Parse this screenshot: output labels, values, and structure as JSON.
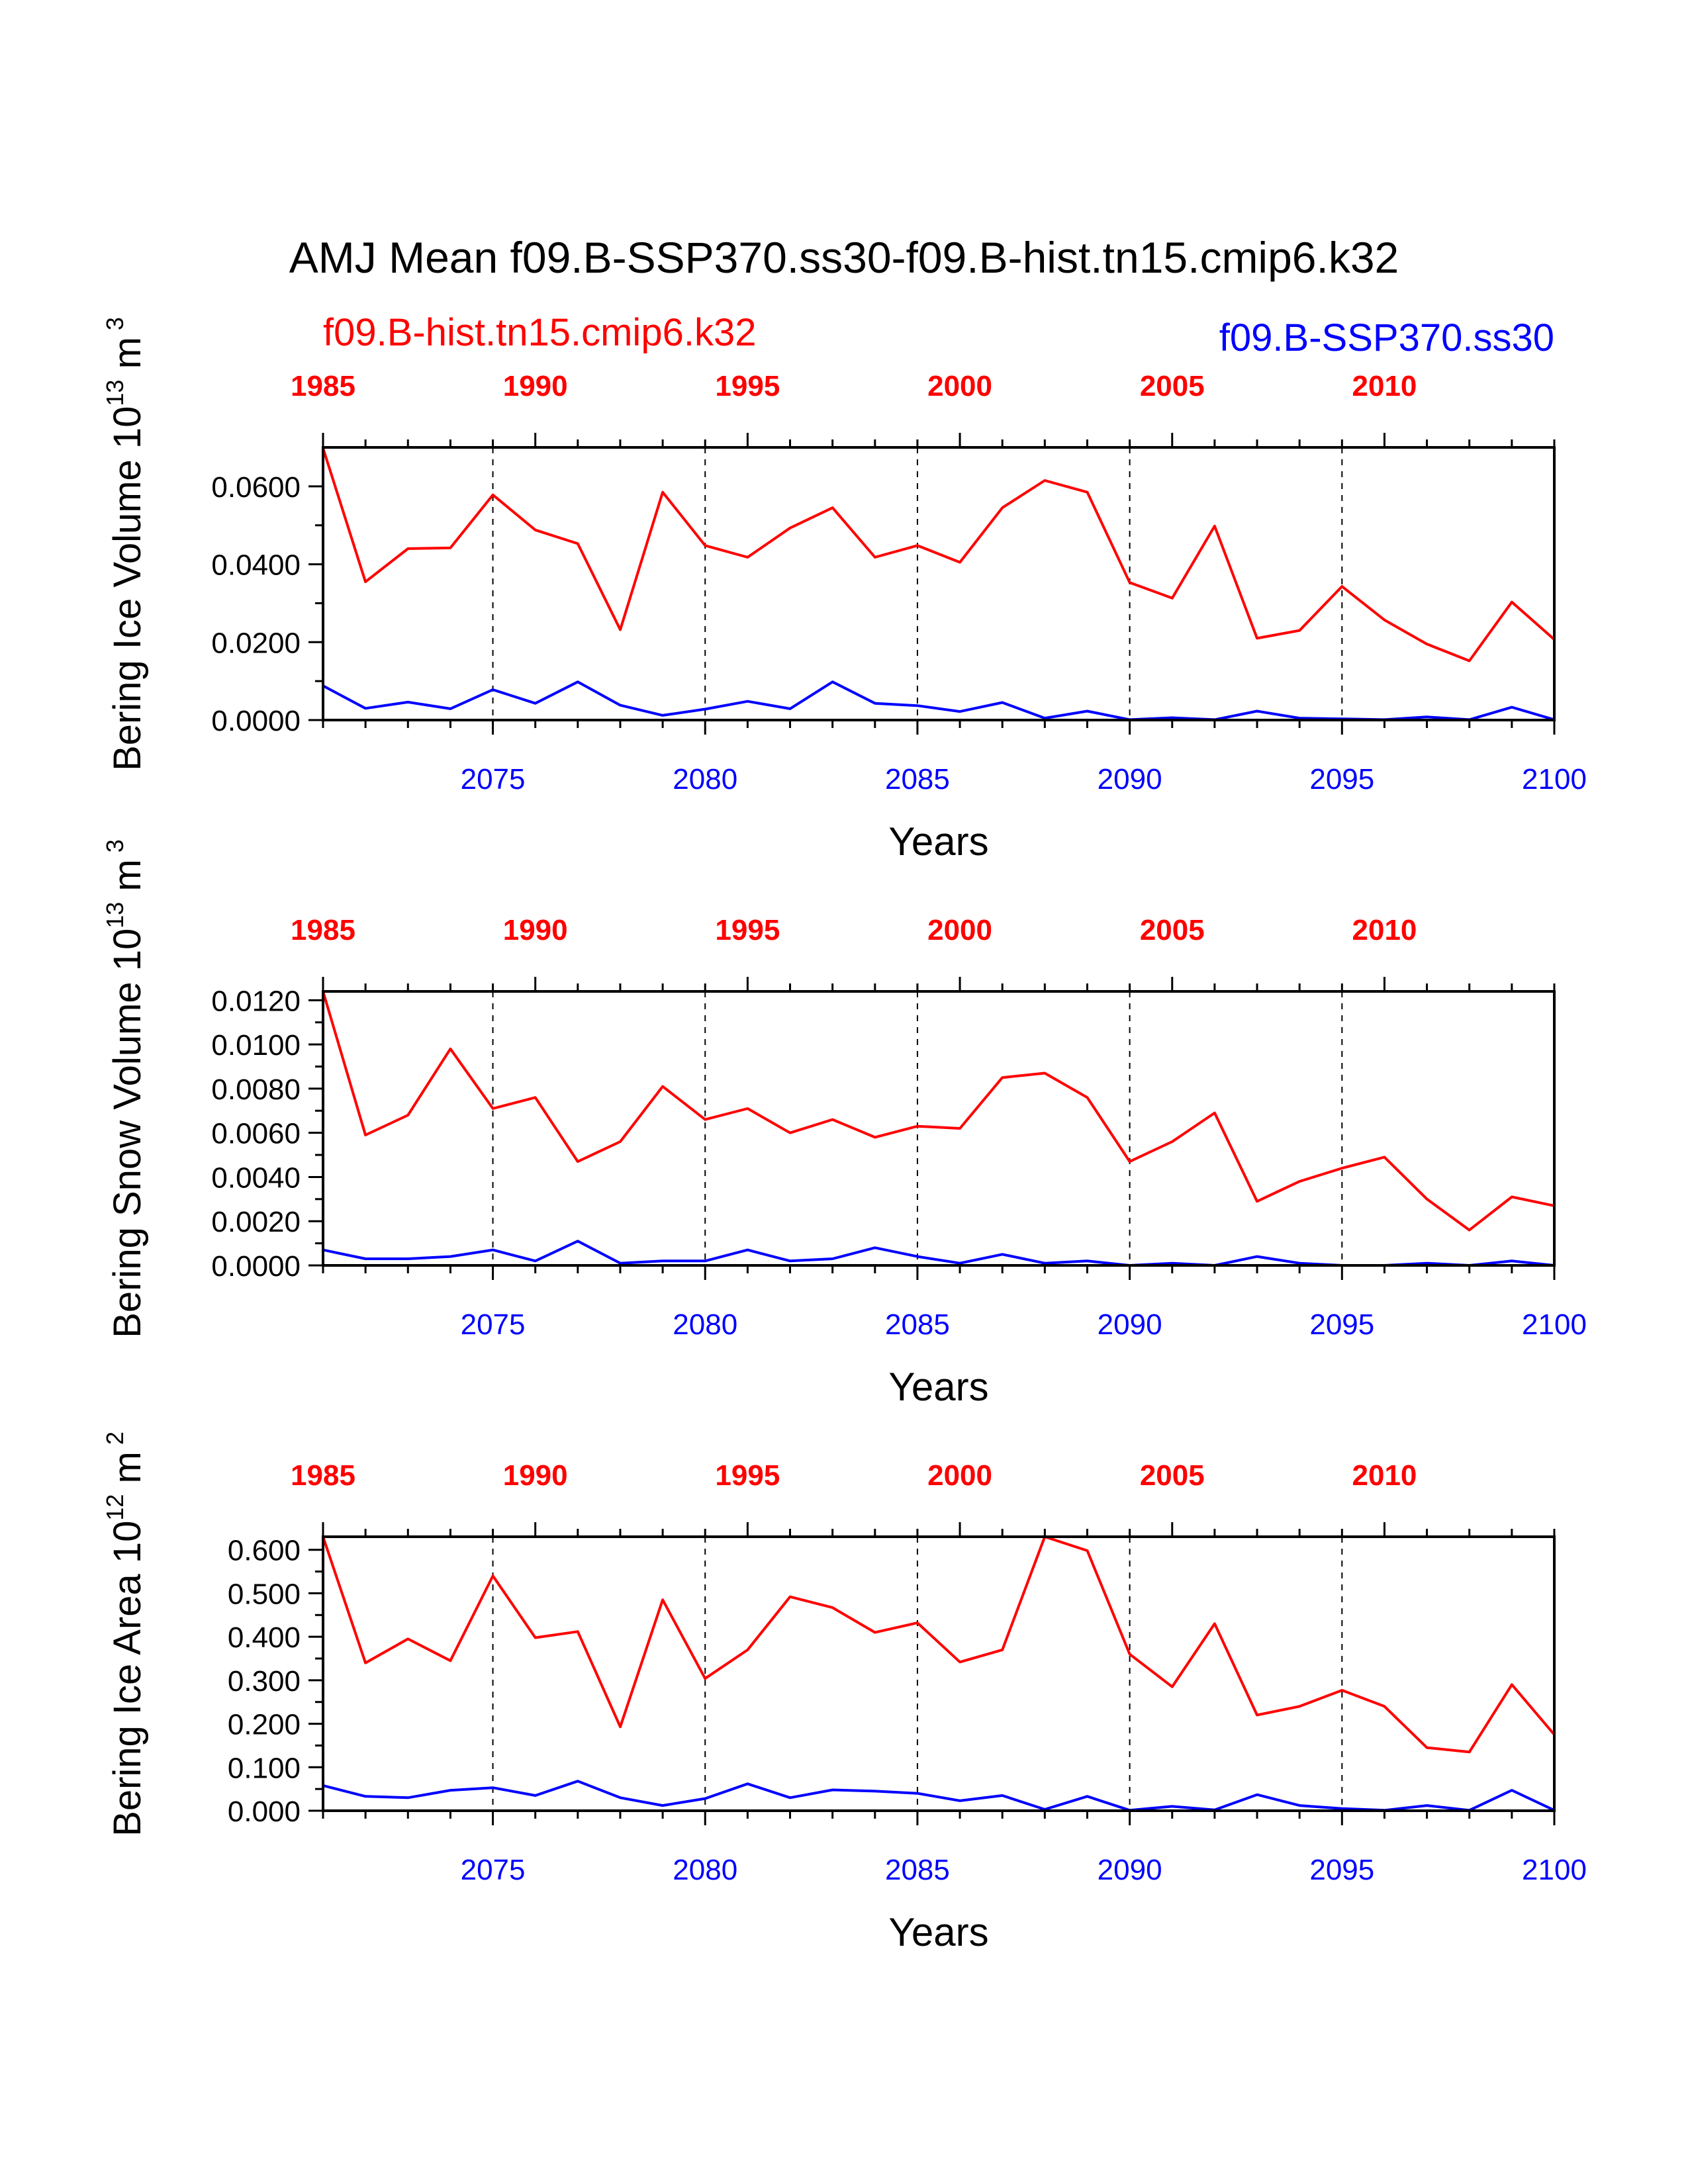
{
  "title": "AMJ Mean f09.B-SSP370.ss30-f09.B-hist.tn15.cmip6.k32",
  "colors": {
    "hist": "#ff0000",
    "ssp": "#0000ff",
    "axis": "#000000"
  },
  "chart_data": [
    {
      "type": "line",
      "title": "AMJ Mean f09.B-SSP370.ss30-f09.B-hist.tn15.cmip6.k32",
      "ylabel": "Bering Ice Volume 10^13 m^3",
      "ylabel_main": "Bering Ice Volume 10",
      "ylabel_exp": "13",
      "ylabel_unit": "m",
      "ylabel_unit_exp": "3",
      "xlabel": "Years",
      "ylim": [
        0,
        0.07
      ],
      "yticks": [
        "0.0000",
        "0.0200",
        "0.0400",
        "0.0600"
      ],
      "ytick_values": [
        0,
        0.02,
        0.04,
        0.06
      ],
      "x_bottom": {
        "range": [
          2071,
          2100
        ],
        "ticks": [
          "2075",
          "2080",
          "2085",
          "2090",
          "2095",
          "2100"
        ]
      },
      "x_top": {
        "range": [
          1985,
          2014
        ],
        "ticks": [
          "1985",
          "1990",
          "1995",
          "2000",
          "2005",
          "2010"
        ]
      },
      "grid": "dashed vertical at labeled years",
      "series": [
        {
          "name": "f09.B-hist.tn15.cmip6.k32",
          "color": "#ff0000",
          "x": [
            1985,
            1986,
            1987,
            1988,
            1989,
            1990,
            1991,
            1992,
            1993,
            1994,
            1995,
            1996,
            1997,
            1998,
            1999,
            2000,
            2001,
            2002,
            2003,
            2004,
            2005,
            2006,
            2007,
            2008,
            2009,
            2010,
            2011,
            2012,
            2013,
            2014
          ],
          "values": [
            0.0698,
            0.0355,
            0.044,
            0.0442,
            0.0578,
            0.0488,
            0.0453,
            0.0232,
            0.0585,
            0.0448,
            0.0418,
            0.0493,
            0.0545,
            0.0418,
            0.0448,
            0.0405,
            0.0545,
            0.0615,
            0.0585,
            0.0353,
            0.0313,
            0.0498,
            0.021,
            0.023,
            0.0343,
            0.0257,
            0.0195,
            0.0152,
            0.0303,
            0.0207
          ]
        },
        {
          "name": "f09.B-SSP370.ss30",
          "color": "#0000ff",
          "x": [
            2071,
            2072,
            2073,
            2074,
            2075,
            2076,
            2077,
            2078,
            2079,
            2080,
            2081,
            2082,
            2083,
            2084,
            2085,
            2086,
            2087,
            2088,
            2089,
            2090,
            2091,
            2092,
            2093,
            2094,
            2095,
            2096,
            2097,
            2098,
            2099,
            2100
          ],
          "values": [
            0.0088,
            0.003,
            0.0046,
            0.0029,
            0.0078,
            0.0043,
            0.0098,
            0.0038,
            0.0012,
            0.0028,
            0.0048,
            0.0029,
            0.0098,
            0.0043,
            0.0037,
            0.0022,
            0.0045,
            0.0005,
            0.0023,
            0.0001,
            0.0006,
            0.0001,
            0.0023,
            0.0005,
            0.0003,
            0.0001,
            0.0008,
            0.0001,
            0.0033,
            0.0001
          ]
        }
      ]
    },
    {
      "type": "line",
      "ylabel": "Bering Snow Volume 10^13 m^3",
      "ylabel_main": "Bering Snow Volume 10",
      "ylabel_exp": "13",
      "ylabel_unit": "m",
      "ylabel_unit_exp": "3",
      "xlabel": "Years",
      "ylim": [
        0,
        0.0124
      ],
      "yticks": [
        "0.0000",
        "0.0020",
        "0.0040",
        "0.0060",
        "0.0080",
        "0.0100",
        "0.0120"
      ],
      "ytick_values": [
        0,
        0.002,
        0.004,
        0.006,
        0.008,
        0.01,
        0.012
      ],
      "x_bottom": {
        "range": [
          2071,
          2100
        ],
        "ticks": [
          "2075",
          "2080",
          "2085",
          "2090",
          "2095",
          "2100"
        ]
      },
      "x_top": {
        "range": [
          1985,
          2014
        ],
        "ticks": [
          "1985",
          "1990",
          "1995",
          "2000",
          "2005",
          "2010"
        ]
      },
      "grid": "dashed vertical at labeled years",
      "series": [
        {
          "name": "f09.B-hist.tn15.cmip6.k32",
          "color": "#ff0000",
          "x": [
            1985,
            1986,
            1987,
            1988,
            1989,
            1990,
            1991,
            1992,
            1993,
            1994,
            1995,
            1996,
            1997,
            1998,
            1999,
            2000,
            2001,
            2002,
            2003,
            2004,
            2005,
            2006,
            2007,
            2008,
            2009,
            2010,
            2011,
            2012,
            2013,
            2014
          ],
          "values": [
            0.0124,
            0.0059,
            0.0068,
            0.0098,
            0.0071,
            0.0076,
            0.0047,
            0.0056,
            0.0081,
            0.0066,
            0.0071,
            0.006,
            0.0066,
            0.0058,
            0.0063,
            0.0062,
            0.0085,
            0.0087,
            0.0076,
            0.0047,
            0.0056,
            0.0069,
            0.0029,
            0.0038,
            0.0044,
            0.0049,
            0.003,
            0.0016,
            0.0031,
            0.0027
          ]
        },
        {
          "name": "f09.B-SSP370.ss30",
          "color": "#0000ff",
          "x": [
            2071,
            2072,
            2073,
            2074,
            2075,
            2076,
            2077,
            2078,
            2079,
            2080,
            2081,
            2082,
            2083,
            2084,
            2085,
            2086,
            2087,
            2088,
            2089,
            2090,
            2091,
            2092,
            2093,
            2094,
            2095,
            2096,
            2097,
            2098,
            2099,
            2100
          ],
          "values": [
            0.0007,
            0.0003,
            0.0003,
            0.0004,
            0.0007,
            0.0002,
            0.0011,
            0.0001,
            0.0002,
            0.0002,
            0.0007,
            0.0002,
            0.0003,
            0.0008,
            0.0004,
            0.0001,
            0.0005,
            0.0001,
            0.0002,
            0.0,
            0.0001,
            0.0,
            0.0004,
            0.0001,
            0.0,
            0.0,
            0.0001,
            0.0,
            0.0002,
            0.0
          ]
        }
      ]
    },
    {
      "type": "line",
      "ylabel": "Bering Ice Area 10^12 m^2",
      "ylabel_main": "Bering Ice Area 10",
      "ylabel_exp": "12",
      "ylabel_unit": "m",
      "ylabel_unit_exp": "2",
      "xlabel": "Years",
      "ylim": [
        0,
        0.63
      ],
      "yticks": [
        "0.000",
        "0.100",
        "0.200",
        "0.300",
        "0.400",
        "0.500",
        "0.600"
      ],
      "ytick_values": [
        0,
        0.1,
        0.2,
        0.3,
        0.4,
        0.5,
        0.6
      ],
      "x_bottom": {
        "range": [
          2071,
          2100
        ],
        "ticks": [
          "2075",
          "2080",
          "2085",
          "2090",
          "2095",
          "2100"
        ]
      },
      "x_top": {
        "range": [
          1985,
          2014
        ],
        "ticks": [
          "1985",
          "1990",
          "1995",
          "2000",
          "2005",
          "2010"
        ]
      },
      "grid": "dashed vertical at labeled years",
      "series": [
        {
          "name": "f09.B-hist.tn15.cmip6.k32",
          "color": "#ff0000",
          "x": [
            1985,
            1986,
            1987,
            1988,
            1989,
            1990,
            1991,
            1992,
            1993,
            1994,
            1995,
            1996,
            1997,
            1998,
            1999,
            2000,
            2001,
            2002,
            2003,
            2004,
            2005,
            2006,
            2007,
            2008,
            2009,
            2010,
            2011,
            2012,
            2013,
            2014
          ],
          "values": [
            0.63,
            0.34,
            0.395,
            0.345,
            0.54,
            0.398,
            0.412,
            0.193,
            0.485,
            0.304,
            0.37,
            0.492,
            0.467,
            0.41,
            0.432,
            0.342,
            0.37,
            0.63,
            0.598,
            0.36,
            0.285,
            0.43,
            0.22,
            0.24,
            0.277,
            0.24,
            0.145,
            0.135,
            0.29,
            0.175
          ]
        },
        {
          "name": "f09.B-SSP370.ss30",
          "color": "#0000ff",
          "x": [
            2071,
            2072,
            2073,
            2074,
            2075,
            2076,
            2077,
            2078,
            2079,
            2080,
            2081,
            2082,
            2083,
            2084,
            2085,
            2086,
            2087,
            2088,
            2089,
            2090,
            2091,
            2092,
            2093,
            2094,
            2095,
            2096,
            2097,
            2098,
            2099,
            2100
          ],
          "values": [
            0.058,
            0.033,
            0.03,
            0.047,
            0.053,
            0.035,
            0.068,
            0.03,
            0.012,
            0.028,
            0.062,
            0.03,
            0.048,
            0.045,
            0.04,
            0.023,
            0.035,
            0.003,
            0.033,
            0.001,
            0.01,
            0.002,
            0.037,
            0.012,
            0.005,
            0.001,
            0.012,
            0.001,
            0.047,
            0.001
          ]
        }
      ]
    }
  ]
}
